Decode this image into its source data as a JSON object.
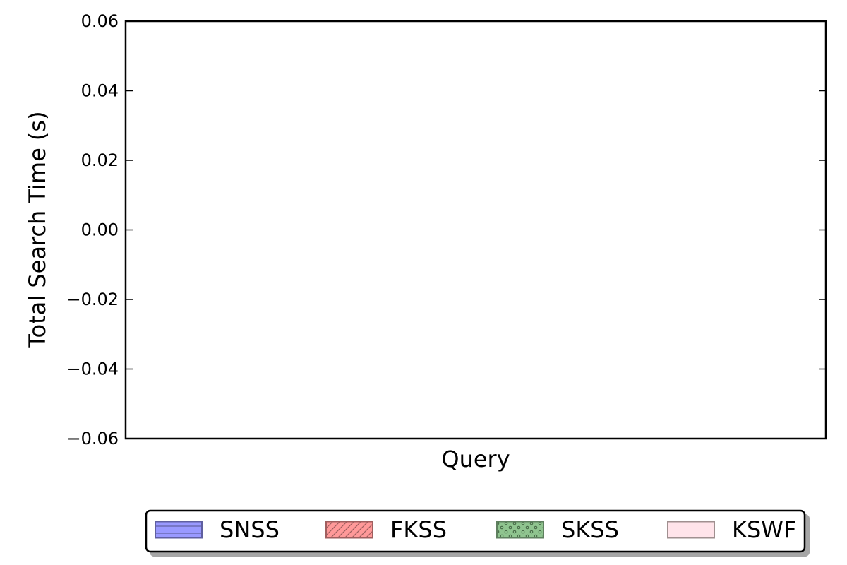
{
  "chart_data": {
    "type": "bar",
    "title": "",
    "xlabel": "Query",
    "ylabel": "Total Search Time (s)",
    "ylim": [
      -0.06,
      0.06
    ],
    "yticks": [
      -0.06,
      -0.04,
      -0.02,
      0.0,
      0.02,
      0.04,
      0.06
    ],
    "ytick_labels": [
      "−0.06",
      "−0.04",
      "−0.02",
      "0.00",
      "0.02",
      "0.04",
      "0.06"
    ],
    "categories": [],
    "grid": false,
    "legend_placement": "bottom-center",
    "series": [
      {
        "name": "SNSS",
        "values": [],
        "color": "#9999ff",
        "edge": "#5f5fa0",
        "hatch": "horizontal"
      },
      {
        "name": "FKSS",
        "values": [],
        "color": "#ff9999",
        "edge": "#a05f5f",
        "hatch": "diagonal"
      },
      {
        "name": "SKSS",
        "values": [],
        "color": "#8fc48f",
        "edge": "#5f805f",
        "hatch": "dots"
      },
      {
        "name": "KSWF",
        "values": [],
        "color": "#ffe4ea",
        "edge": "#a09090",
        "hatch": "none"
      }
    ]
  }
}
